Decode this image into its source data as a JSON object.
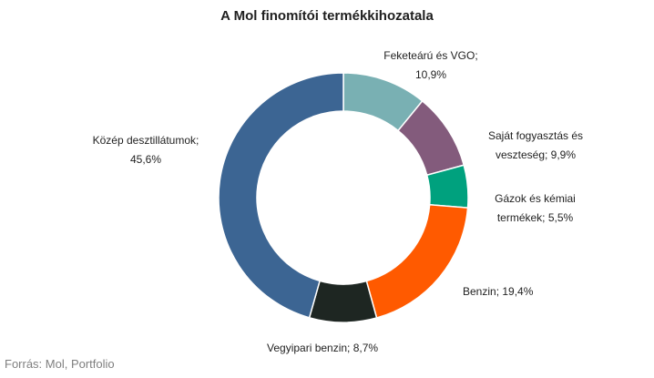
{
  "chart_data": {
    "type": "pie",
    "variant": "donut",
    "title": "A Mol finomítói termékkihozatala",
    "legend": "none",
    "slices": [
      {
        "name": "Feketeárú és VGO",
        "value": 10.9,
        "color": "#79B0B3",
        "label_lines": [
          "Feketeárú és VGO;",
          "10,9%"
        ]
      },
      {
        "name": "Saját fogyasztás és veszteség",
        "value": 9.9,
        "color": "#835B7C",
        "label_lines": [
          "Saját fogyasztás és",
          "veszteség; 9,9%"
        ]
      },
      {
        "name": "Gázok és kémiai termékek",
        "value": 5.5,
        "color": "#00A17E",
        "label_lines": [
          "Gázok és kémiai",
          "termékek; 5,5%"
        ]
      },
      {
        "name": "Benzin",
        "value": 19.4,
        "color": "#FF5A00",
        "label_lines": [
          "Benzin; 19,4%"
        ]
      },
      {
        "name": "Vegyipari benzin",
        "value": 8.7,
        "color": "#1E2622",
        "label_lines": [
          "Vegyipari benzin; 8,7%"
        ]
      },
      {
        "name": "Közép desztillátumok",
        "value": 45.6,
        "color": "#3C6593",
        "label_lines": [
          "Közép desztillátumok;",
          "45,6%"
        ]
      }
    ]
  },
  "source": "Forrás: Mol, Portfolio"
}
